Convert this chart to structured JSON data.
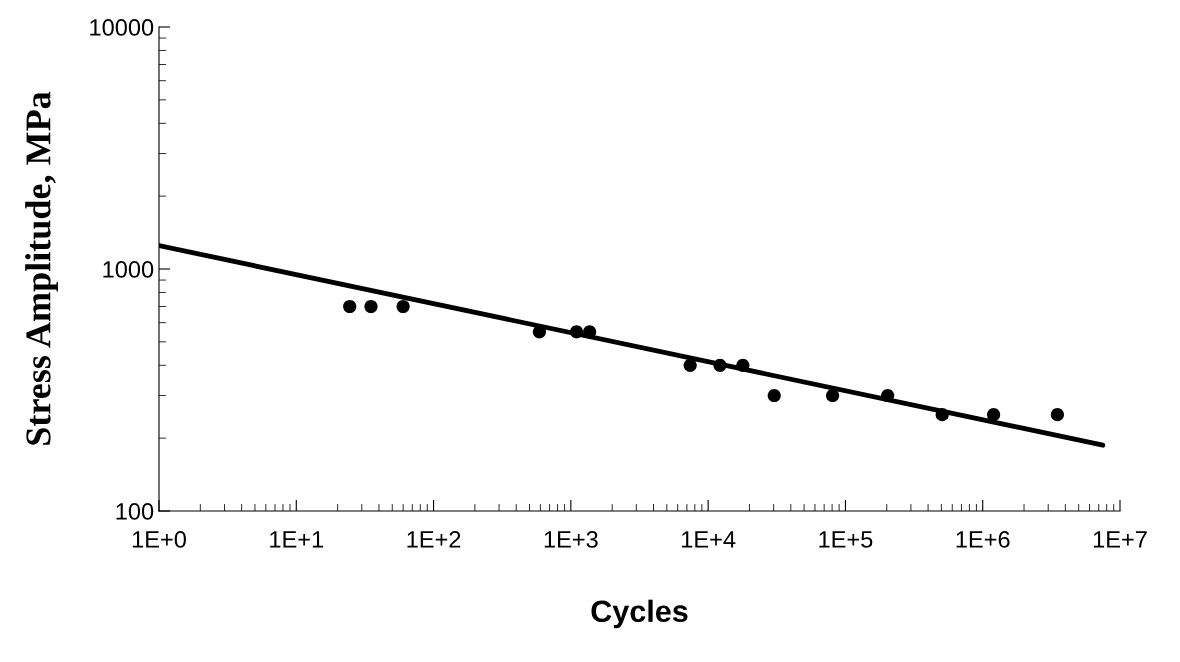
{
  "chart_data": {
    "type": "scatter",
    "xlabel": "Cycles",
    "ylabel": "Stress Amplitude, MPa",
    "log": "xy",
    "grid": false,
    "legend": false,
    "xlim": [
      1,
      10000000
    ],
    "ylim": [
      100,
      10000
    ],
    "xticks": [
      {
        "value": 1,
        "label": "1E+0"
      },
      {
        "value": 10,
        "label": "1E+1"
      },
      {
        "value": 100,
        "label": "1E+2"
      },
      {
        "value": 1000,
        "label": "1E+3"
      },
      {
        "value": 10000,
        "label": "1E+4"
      },
      {
        "value": 100000,
        "label": "1E+5"
      },
      {
        "value": 1000000,
        "label": "1E+6"
      },
      {
        "value": 10000000,
        "label": "1E+7"
      }
    ],
    "yticks": [
      100,
      1000,
      10000
    ],
    "series": [
      {
        "color": "#000000",
        "marker": "circle",
        "x": [
          24.5,
          35,
          60,
          590,
          1100,
          1370,
          7400,
          12200,
          17900,
          30300,
          80600,
          203000,
          507000,
          1200000,
          3500000
        ],
        "values": [
          700,
          700,
          700,
          550,
          550,
          550,
          400,
          400,
          400,
          300,
          300,
          300,
          250,
          250,
          250
        ]
      },
      {
        "type": "line",
        "color": "#000000",
        "marker": "none",
        "line_style": "solid",
        "x": [
          1,
          7500000
        ],
        "values": [
          1250,
          187
        ]
      }
    ]
  }
}
